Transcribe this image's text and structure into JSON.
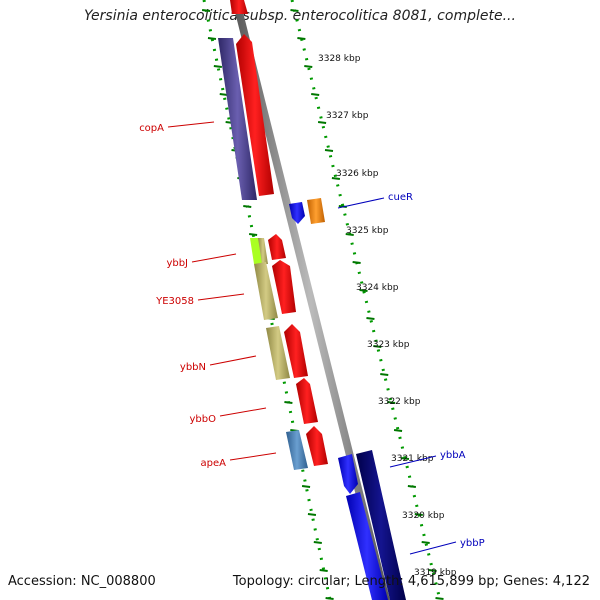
{
  "title": "Yersinia enterocolitica subsp. enterocolitica 8081, complete...",
  "footer": {
    "accession": "Accession: NC_008800",
    "summary": "Topology: circular; Length: 4,615,899 bp; Genes: 4,122"
  },
  "ruler_labels": [
    "3328 kbp",
    "3327 kbp",
    "3326 kbp",
    "3325 kbp",
    "3324 kbp",
    "3323 kbp",
    "3322 kbp",
    "3321 kbp",
    "3320 kbp",
    "3319 kbp"
  ],
  "genes_left": [
    "copA",
    "ybbJ",
    "YE3058",
    "ybbN",
    "ybbO",
    "apeA"
  ],
  "genes_right": [
    "cueR",
    "ybbA",
    "ybbP"
  ],
  "colors": {
    "red": "#ff0000",
    "purple": "#4a3f8c",
    "olive": "#bdb46a",
    "lime": "#aaff22",
    "blue": "#0000ff",
    "navy": "#000080",
    "orange": "#ff8c00",
    "steel": "#4a7fb5",
    "green_tick": "#007700",
    "label_red": "#cc0000",
    "label_blue": "#0000bb"
  }
}
